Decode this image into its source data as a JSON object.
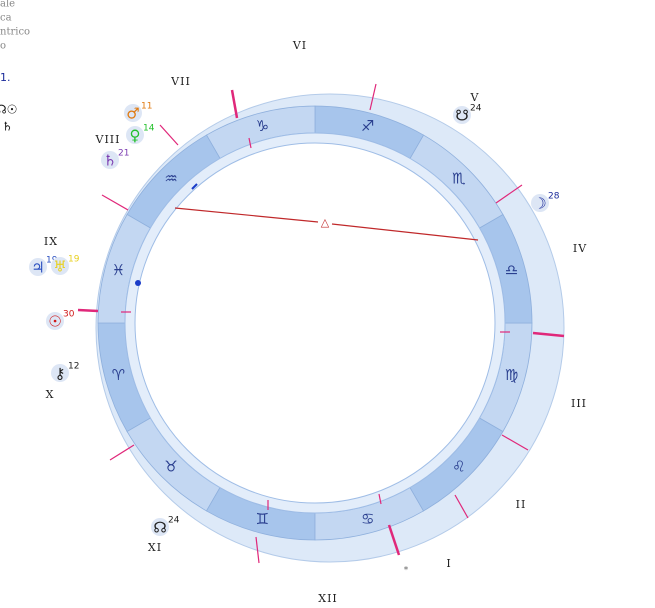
{
  "side_text": [
    "ale",
    "ca",
    "ntrico",
    "o",
    "1."
  ],
  "side_symbols": [
    "☊☉",
    "♄"
  ],
  "houses": [
    "I",
    "II",
    "III",
    "IV",
    "V",
    "VI",
    "VII",
    "VIII",
    "IX",
    "X",
    "XI",
    "XII"
  ],
  "signs": [
    "♈",
    "♉",
    "♊",
    "♋",
    "♌",
    "♍",
    "♎",
    "♏",
    "♐",
    "♑",
    "♒",
    "♓"
  ],
  "planets": [
    {
      "glyph": "♂",
      "degree": 11
    },
    {
      "glyph": "♀",
      "degree": 14
    },
    {
      "glyph": "♄",
      "degree": 21
    },
    {
      "glyph": "♃",
      "degree": 19
    },
    {
      "glyph": "♅",
      "degree": 19
    },
    {
      "glyph": "☉",
      "degree": 30
    },
    {
      "glyph": "⚷",
      "degree": 12
    },
    {
      "glyph": "☊",
      "degree": 24
    },
    {
      "glyph": "☋",
      "degree": 24
    },
    {
      "glyph": "☽",
      "degree": 28
    }
  ],
  "aspect_symbol": "△",
  "marker": "*"
}
